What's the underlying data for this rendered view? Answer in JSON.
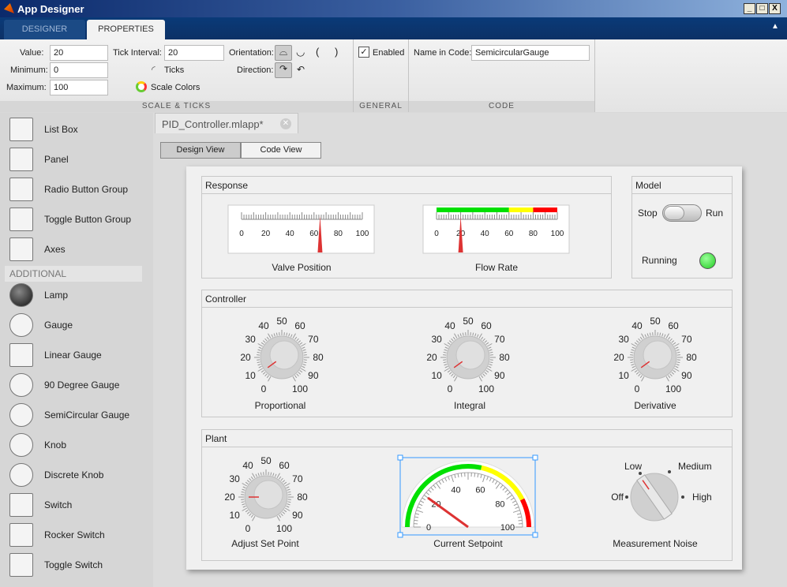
{
  "window": {
    "title": "App Designer",
    "buttons": [
      "_",
      "□",
      "X"
    ]
  },
  "ribbon": {
    "tabs": [
      {
        "label": "DESIGNER"
      },
      {
        "label": "PROPERTIES",
        "active": true
      }
    ],
    "collapse": "▲"
  },
  "toolbar": {
    "scale": {
      "value_label": "Value:",
      "value": "20",
      "min_label": "Minimum:",
      "min": "0",
      "max_label": "Maximum:",
      "max": "100",
      "tick_label": "Tick Interval:",
      "tick": "20",
      "ticks_label": "Ticks",
      "colors_label": "Scale Colors",
      "orientation_label": "Orientation:",
      "direction_label": "Direction:",
      "section": "SCALE & TICKS"
    },
    "general": {
      "enabled_label": "Enabled",
      "enabled": true,
      "section": "GENERAL"
    },
    "code": {
      "name_label": "Name in Code:",
      "name": "SemicircularGauge",
      "section": "CODE"
    }
  },
  "palette": {
    "items": [
      {
        "label": "List Box",
        "icon": "listbox-icon"
      },
      {
        "label": "Panel",
        "icon": "panel-icon"
      },
      {
        "label": "Radio Button Group",
        "icon": "radio-group-icon"
      },
      {
        "label": "Toggle Button Group",
        "icon": "toggle-group-icon"
      },
      {
        "label": "Axes",
        "icon": "axes-icon"
      }
    ],
    "section": "ADDITIONAL",
    "additional": [
      {
        "label": "Lamp",
        "icon": "lamp-icon"
      },
      {
        "label": "Gauge",
        "icon": "gauge-icon"
      },
      {
        "label": "Linear Gauge",
        "icon": "linear-gauge-icon"
      },
      {
        "label": "90 Degree Gauge",
        "icon": "ninety-gauge-icon"
      },
      {
        "label": "SemiCircular Gauge",
        "icon": "semicircular-gauge-icon"
      },
      {
        "label": "Knob",
        "icon": "knob-icon"
      },
      {
        "label": "Discrete Knob",
        "icon": "discrete-knob-icon"
      },
      {
        "label": "Switch",
        "icon": "switch-icon"
      },
      {
        "label": "Rocker Switch",
        "icon": "rocker-switch-icon"
      },
      {
        "label": "Toggle Switch",
        "icon": "toggle-switch-icon"
      }
    ]
  },
  "editor": {
    "file_tab": "PID_Controller.mlapp*",
    "views": [
      "Design View",
      "Code View"
    ],
    "active_view": "Design View"
  },
  "app": {
    "response": {
      "title": "Response",
      "valve": {
        "label": "Valve Position",
        "value": 65,
        "ticks": [
          "0",
          "20",
          "40",
          "60",
          "80",
          "100"
        ]
      },
      "flow": {
        "label": "Flow Rate",
        "value": 20,
        "ticks": [
          "0",
          "20",
          "40",
          "60",
          "80",
          "100"
        ],
        "colors": [
          {
            "from": 0,
            "to": 60,
            "color": "#00e000"
          },
          {
            "from": 60,
            "to": 80,
            "color": "#ffff00"
          },
          {
            "from": 80,
            "to": 100,
            "color": "#ff0000"
          }
        ]
      }
    },
    "model": {
      "title": "Model",
      "off": "Stop",
      "on": "Run",
      "state": "Stop",
      "lamp_label": "Running",
      "lamp_color": "#22cc22"
    },
    "controller": {
      "title": "Controller",
      "knobs": [
        {
          "label": "Proportional",
          "value": 8
        },
        {
          "label": "Integral",
          "value": 8
        },
        {
          "label": "Derivative",
          "value": 8
        }
      ],
      "ticks": [
        "0",
        "10",
        "20",
        "30",
        "40",
        "50",
        "60",
        "70",
        "80",
        "90",
        "100"
      ]
    },
    "plant": {
      "title": "Plant",
      "knob": {
        "label": "Adjust Set Point",
        "value": 20
      },
      "gauge": {
        "label": "Current Setpoint",
        "value": 20,
        "ticks": [
          "0",
          "20",
          "40",
          "60",
          "80",
          "100"
        ],
        "colors": [
          {
            "from": 0,
            "to": 57,
            "color": "#00e000"
          },
          {
            "from": 57,
            "to": 85,
            "color": "#ffff00"
          },
          {
            "from": 85,
            "to": 100,
            "color": "#ff0000"
          }
        ]
      },
      "discrete": {
        "label": "Measurement Noise",
        "options": [
          "Off",
          "Low",
          "Medium",
          "High"
        ],
        "value": "Low"
      }
    }
  }
}
